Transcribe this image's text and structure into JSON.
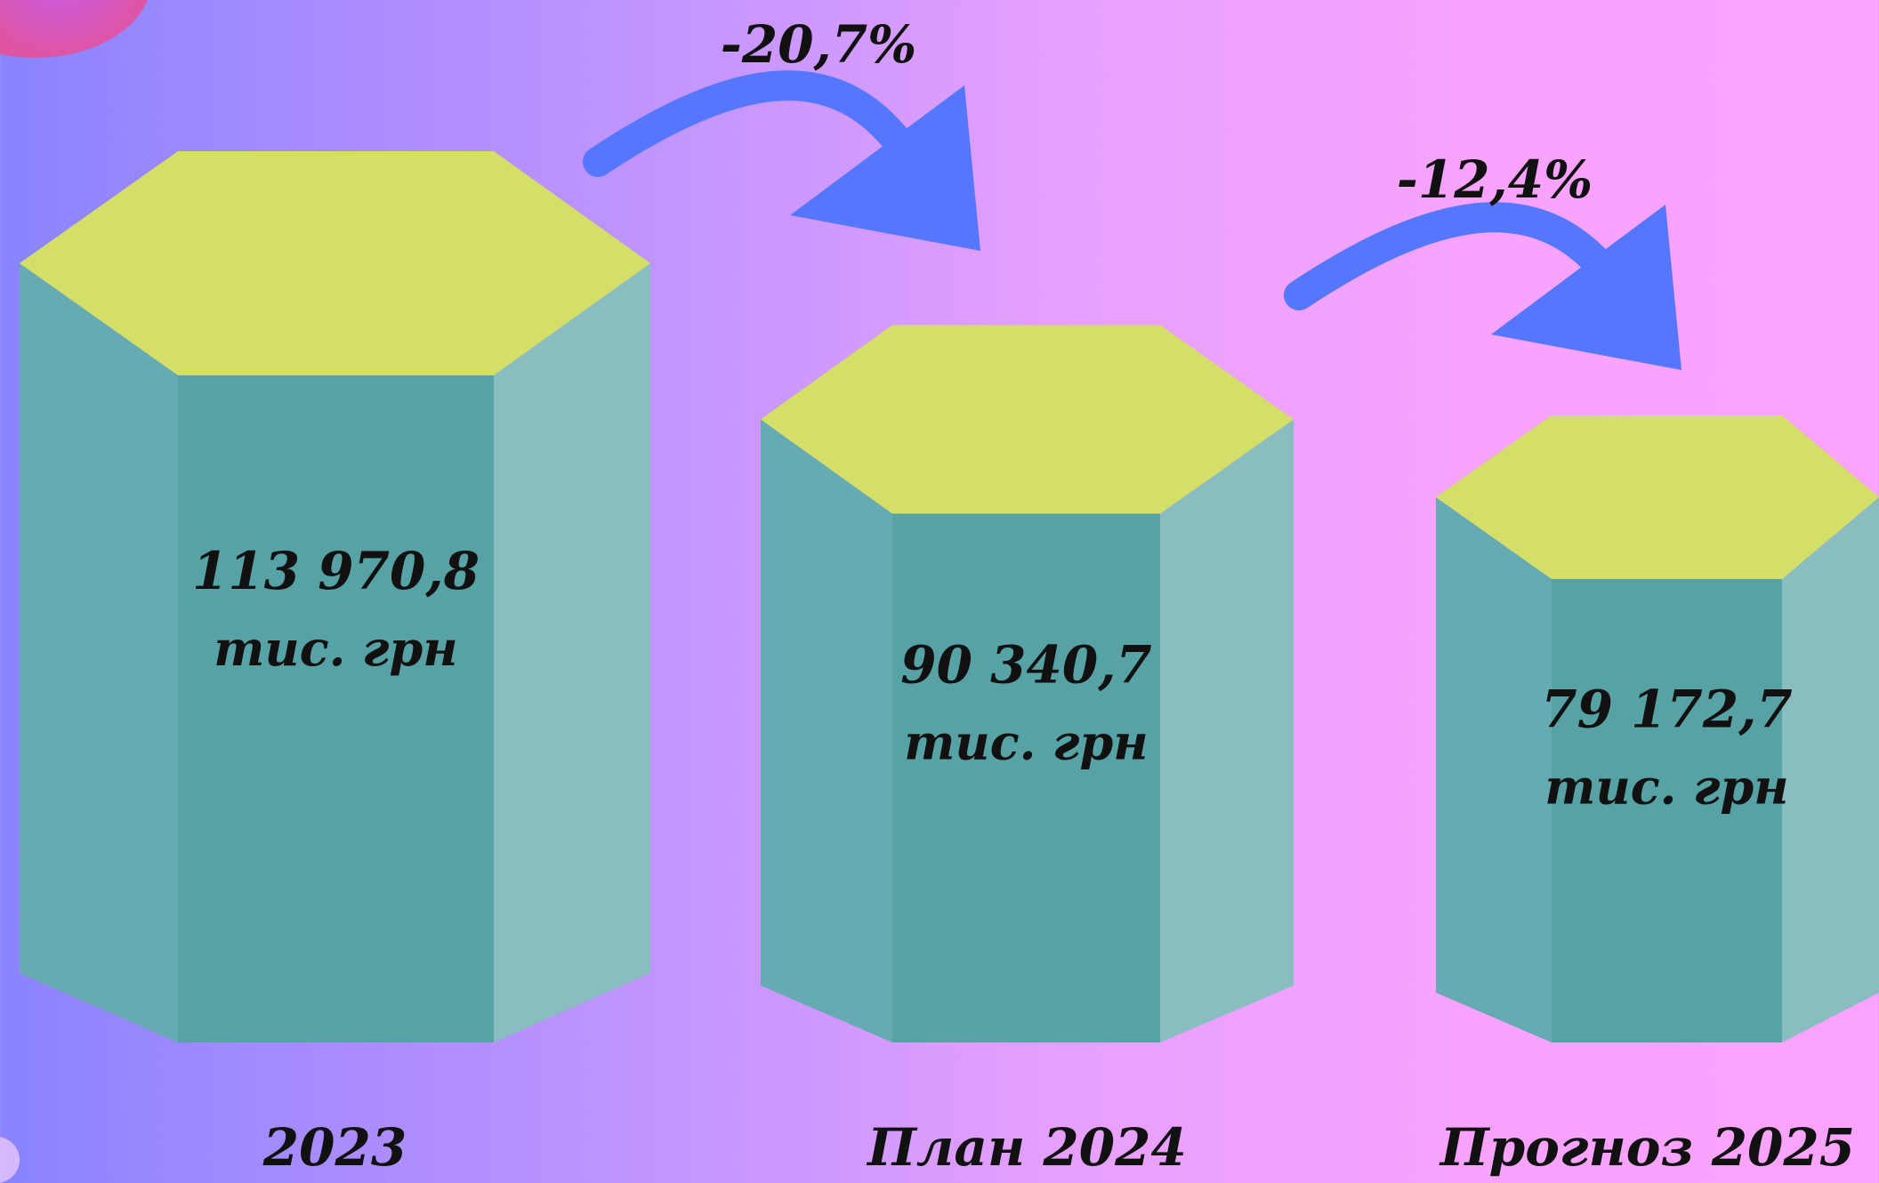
{
  "colors": {
    "top_face": "#d4df68",
    "front_face": "#57a2a5",
    "left_face": "#66abb1",
    "right_face": "#89bdc0",
    "arrow": "#5577ff",
    "text": "#111111"
  },
  "chart_data": {
    "type": "bar",
    "categories": [
      "2023",
      "План 2024",
      "Прогноз 2025"
    ],
    "values": [
      113970.8,
      90340.7,
      79172.7
    ],
    "value_labels": [
      "113 970,8",
      "90 340,7",
      "79 172,7"
    ],
    "unit": "тис. грн",
    "changes": [
      "-20,7%",
      "-12,4%"
    ],
    "ylim": [
      0,
      113970.8
    ]
  }
}
